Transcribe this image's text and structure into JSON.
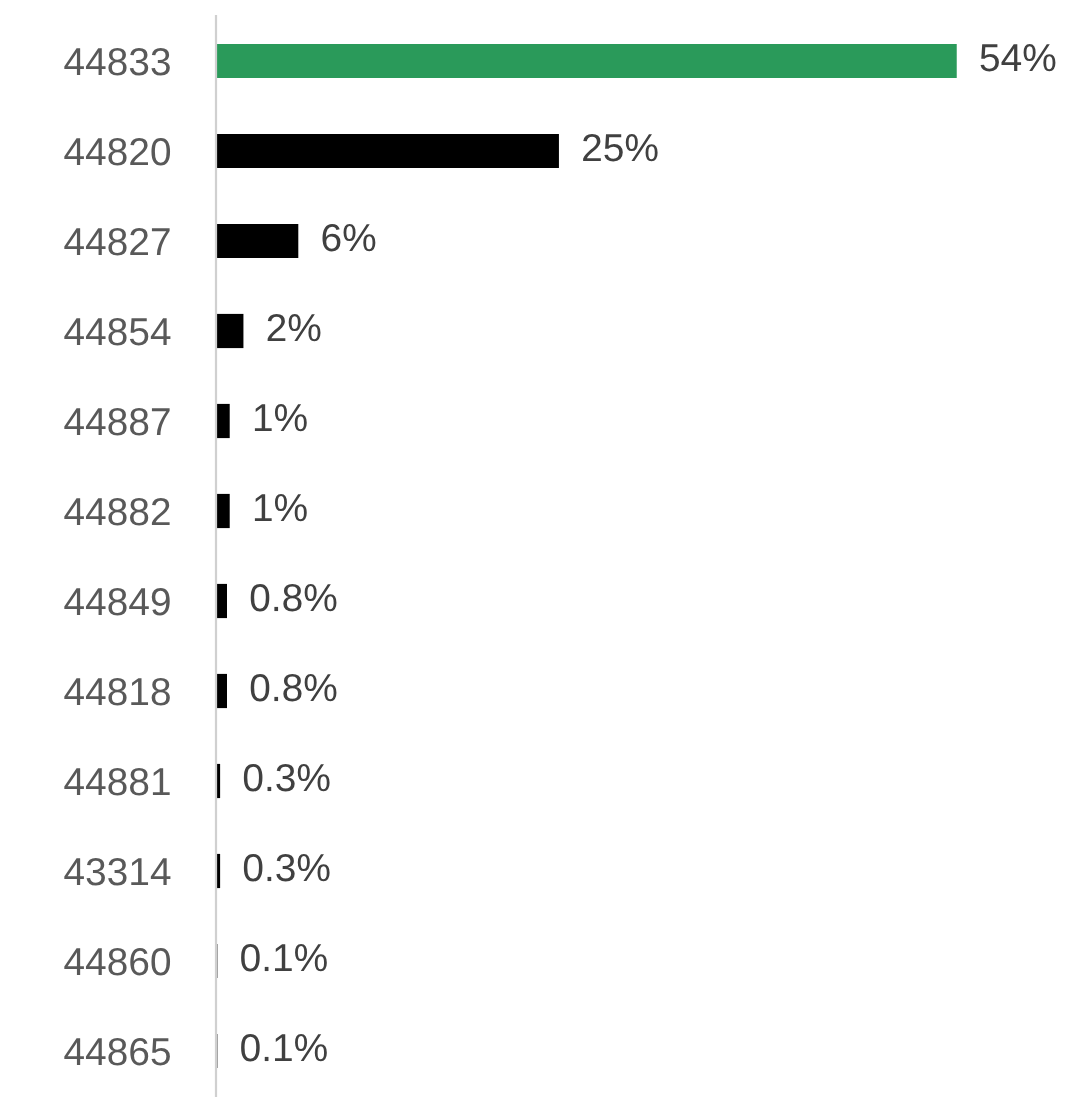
{
  "chart_data": {
    "type": "bar",
    "orientation": "horizontal",
    "categories": [
      "44833",
      "44820",
      "44827",
      "44854",
      "44887",
      "44882",
      "44849",
      "44818",
      "44881",
      "43314",
      "44860",
      "44865"
    ],
    "values": [
      54,
      25,
      6,
      2,
      1,
      1,
      0.8,
      0.8,
      0.3,
      0.3,
      0.1,
      0.1
    ],
    "colors": [
      "#2a9a5a",
      "#000000",
      "#000000",
      "#000000",
      "#000000",
      "#000000",
      "#000000",
      "#000000",
      "#000000",
      "#000000",
      "#000000",
      "#000000"
    ],
    "value_labels": [
      "54%",
      "25%",
      "6%",
      "2%",
      "1%",
      "1%",
      "0.8%",
      "0.8%",
      "0.3%",
      "0.3%",
      "0.1%",
      "0.1%"
    ],
    "grid": false,
    "legend": false
  }
}
